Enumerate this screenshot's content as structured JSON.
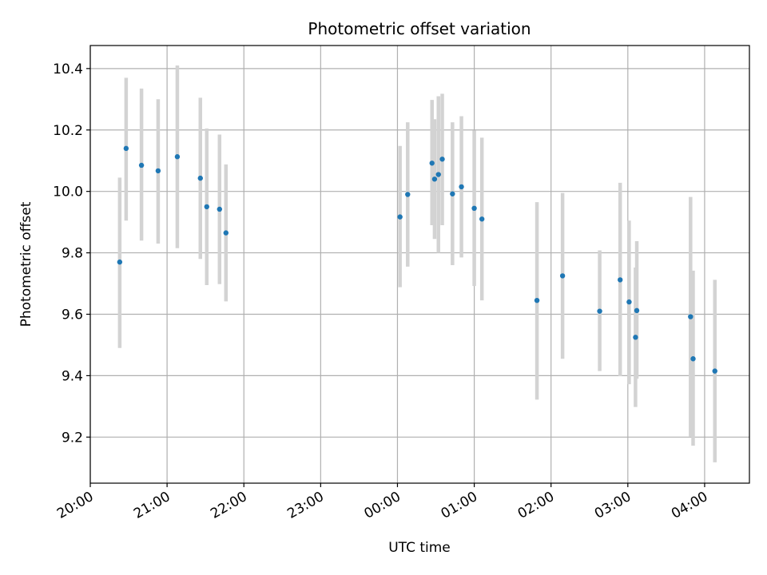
{
  "chart_data": {
    "type": "scatter",
    "title": "Photometric offset variation",
    "xlabel": "UTC time",
    "ylabel": "Photometric offset",
    "xlim": [
      "20:00",
      "04:35"
    ],
    "ylim": [
      9.05,
      10.475
    ],
    "grid": true,
    "xticks": [
      "20:00",
      "21:00",
      "22:00",
      "23:00",
      "00:00",
      "01:00",
      "02:00",
      "03:00",
      "04:00"
    ],
    "yticks": [
      "9.2",
      "9.4",
      "9.6",
      "9.8",
      "10.0",
      "10.2",
      "10.4"
    ],
    "point_color": "#1f77b4",
    "errorbar_color": "#d3d3d3",
    "points": [
      {
        "t": "20:23",
        "y": 9.77,
        "lo": 9.49,
        "hi": 10.045
      },
      {
        "t": "20:28",
        "y": 10.14,
        "lo": 9.905,
        "hi": 10.37
      },
      {
        "t": "20:40",
        "y": 10.085,
        "lo": 9.84,
        "hi": 10.335
      },
      {
        "t": "20:53",
        "y": 10.067,
        "lo": 9.83,
        "hi": 10.3
      },
      {
        "t": "21:08",
        "y": 10.113,
        "lo": 9.815,
        "hi": 10.41
      },
      {
        "t": "21:26",
        "y": 10.043,
        "lo": 9.78,
        "hi": 10.305
      },
      {
        "t": "21:31",
        "y": 9.95,
        "lo": 9.695,
        "hi": 10.205
      },
      {
        "t": "21:41",
        "y": 9.942,
        "lo": 9.698,
        "hi": 10.185
      },
      {
        "t": "21:46",
        "y": 9.865,
        "lo": 9.642,
        "hi": 10.088
      },
      {
        "t": "00:02",
        "y": 9.917,
        "lo": 9.688,
        "hi": 10.148
      },
      {
        "t": "00:08",
        "y": 9.99,
        "lo": 9.755,
        "hi": 10.225
      },
      {
        "t": "00:27",
        "y": 10.092,
        "lo": 9.89,
        "hi": 10.298
      },
      {
        "t": "00:29",
        "y": 10.04,
        "lo": 9.845,
        "hi": 10.235
      },
      {
        "t": "00:32",
        "y": 10.055,
        "lo": 9.8,
        "hi": 10.31
      },
      {
        "t": "00:35",
        "y": 10.105,
        "lo": 9.89,
        "hi": 10.318
      },
      {
        "t": "00:43",
        "y": 9.992,
        "lo": 9.76,
        "hi": 10.225
      },
      {
        "t": "00:50",
        "y": 10.015,
        "lo": 9.785,
        "hi": 10.245
      },
      {
        "t": "01:00",
        "y": 9.945,
        "lo": 9.692,
        "hi": 10.198
      },
      {
        "t": "01:06",
        "y": 9.91,
        "lo": 9.645,
        "hi": 10.175
      },
      {
        "t": "01:49",
        "y": 9.645,
        "lo": 9.322,
        "hi": 9.965
      },
      {
        "t": "02:09",
        "y": 9.725,
        "lo": 9.455,
        "hi": 9.995
      },
      {
        "t": "02:38",
        "y": 9.61,
        "lo": 9.415,
        "hi": 9.808
      },
      {
        "t": "02:54",
        "y": 9.712,
        "lo": 9.398,
        "hi": 10.028
      },
      {
        "t": "03:01",
        "y": 9.64,
        "lo": 9.372,
        "hi": 9.905
      },
      {
        "t": "03:06",
        "y": 9.525,
        "lo": 9.298,
        "hi": 9.752
      },
      {
        "t": "03:07",
        "y": 9.612,
        "lo": 9.39,
        "hi": 9.838
      },
      {
        "t": "03:49",
        "y": 9.592,
        "lo": 9.202,
        "hi": 9.982
      },
      {
        "t": "03:51",
        "y": 9.455,
        "lo": 9.172,
        "hi": 9.742
      },
      {
        "t": "04:08",
        "y": 9.415,
        "lo": 9.118,
        "hi": 9.712
      }
    ]
  }
}
